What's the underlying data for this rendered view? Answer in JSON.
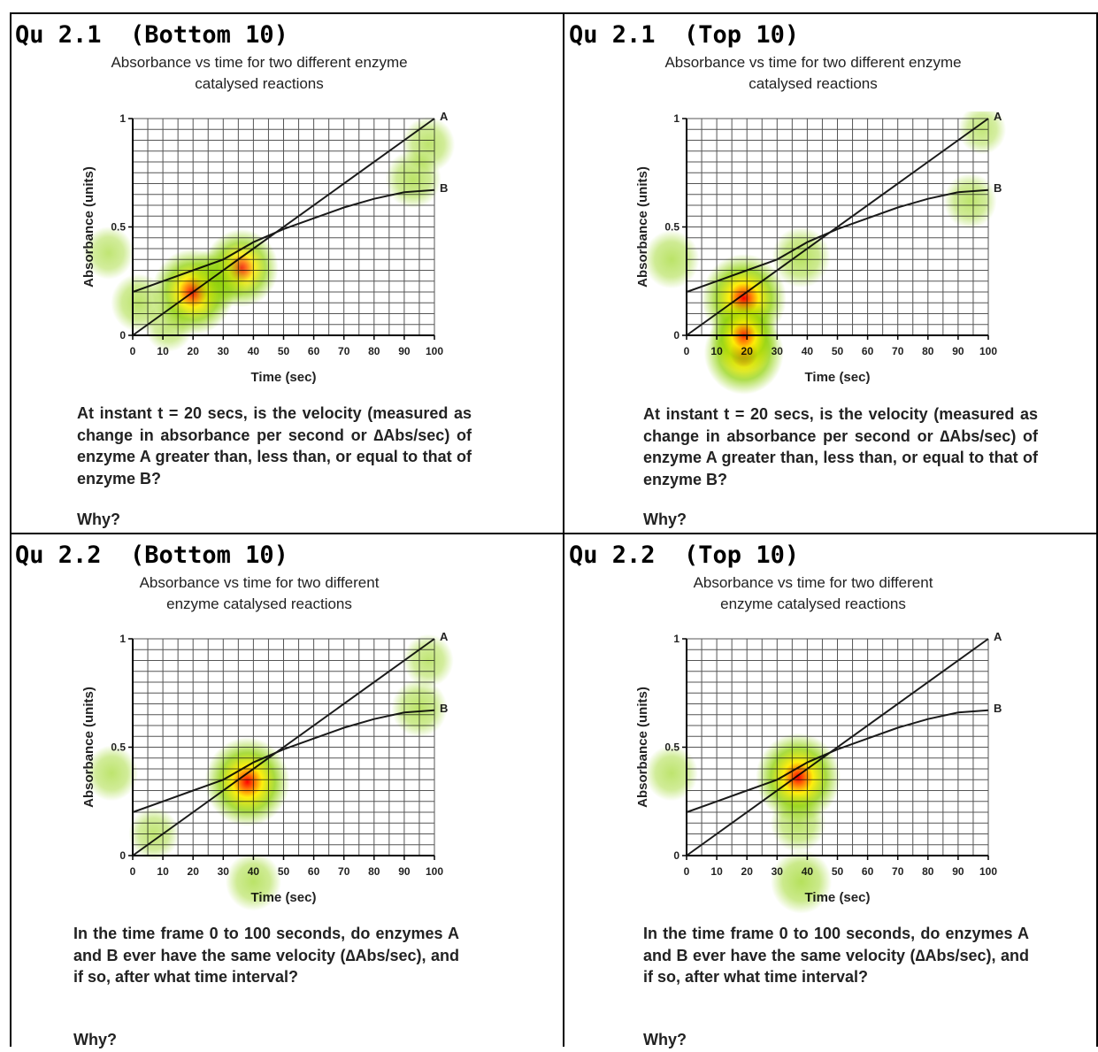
{
  "panels": [
    {
      "heading": "Qu 2.1  (Bottom 10)",
      "chart_title_line1": "Absorbance vs time for two different enzyme",
      "chart_title_line2": "catalysed reactions",
      "question": "At instant t = 20 secs, is the velocity (measured as change in absorbance per second or ∆Abs/sec) of enzyme A greater than, less than, or equal to that of enzyme B?",
      "why": "Why?",
      "heat": [
        {
          "x": 20,
          "y": 0.2,
          "intensity": 0.95
        },
        {
          "x": 36,
          "y": 0.31,
          "intensity": 0.8
        },
        {
          "x": 28,
          "y": 0.26,
          "intensity": 0.55
        },
        {
          "x": 2,
          "y": 0.15,
          "intensity": 0.45
        },
        {
          "x": -8,
          "y": 0.38,
          "intensity": 0.35
        },
        {
          "x": 12,
          "y": 0.04,
          "intensity": 0.3
        },
        {
          "x": 93,
          "y": 0.72,
          "intensity": 0.45
        },
        {
          "x": 98,
          "y": 0.88,
          "intensity": 0.4
        }
      ]
    },
    {
      "heading": "Qu 2.1  (Top 10)",
      "chart_title_line1": "Absorbance vs time for two different enzyme",
      "chart_title_line2": "catalysed reactions",
      "question": "At instant t = 20 secs, is the velocity (measured as change in absorbance per second or ∆Abs/sec) of enzyme A greater than, less than, or equal to that of enzyme B?",
      "why": "Why?",
      "heat": [
        {
          "x": 19,
          "y": 0.17,
          "intensity": 1.0
        },
        {
          "x": 19,
          "y": -0.08,
          "intensity": 0.9
        },
        {
          "x": 19,
          "y": 0.0,
          "intensity": 0.7
        },
        {
          "x": 38,
          "y": 0.36,
          "intensity": 0.5
        },
        {
          "x": -5,
          "y": 0.35,
          "intensity": 0.45
        },
        {
          "x": 94,
          "y": 0.62,
          "intensity": 0.4
        },
        {
          "x": 98,
          "y": 0.95,
          "intensity": 0.3
        }
      ]
    },
    {
      "heading": "Qu 2.2  (Bottom 10)",
      "chart_title_line1": "Absorbance vs time for two different",
      "chart_title_line2": "enzyme catalysed reactions",
      "question": "In the time frame 0 to 100 seconds, do enzymes A and B ever have the same velocity (∆Abs/sec), and if so, after what time interval?",
      "why": "Why?",
      "heat": [
        {
          "x": 38,
          "y": 0.34,
          "intensity": 1.0
        },
        {
          "x": -7,
          "y": 0.38,
          "intensity": 0.4
        },
        {
          "x": 7,
          "y": 0.1,
          "intensity": 0.35
        },
        {
          "x": 40,
          "y": -0.12,
          "intensity": 0.45
        },
        {
          "x": 95,
          "y": 0.68,
          "intensity": 0.45
        },
        {
          "x": 98,
          "y": 0.9,
          "intensity": 0.35
        }
      ]
    },
    {
      "heading": "Qu 2.2  (Top 10)",
      "chart_title_line1": "Absorbance vs time for two different",
      "chart_title_line2": "enzyme catalysed reactions",
      "question": "In the time frame 0 to 100 seconds, do enzymes A and B ever have the same velocity (∆Abs/sec), and if so, after what time interval?",
      "why": "Why?",
      "heat": [
        {
          "x": 37,
          "y": 0.36,
          "intensity": 1.0
        },
        {
          "x": 37,
          "y": 0.15,
          "intensity": 0.45
        },
        {
          "x": 38,
          "y": -0.12,
          "intensity": 0.55
        },
        {
          "x": -5,
          "y": 0.38,
          "intensity": 0.4
        }
      ]
    }
  ],
  "chart_data": [
    {
      "type": "line",
      "title": "Absorbance vs time for two different enzyme catalysed reactions",
      "xlabel": "Time (sec)",
      "ylabel": "Absorbance (units)",
      "xlim": [
        0,
        100
      ],
      "ylim": [
        0,
        1
      ],
      "xticks": [
        "0",
        "10",
        "20",
        "30",
        "40",
        "50",
        "60",
        "70",
        "80",
        "90",
        "100"
      ],
      "yticks": [
        "0",
        "0.5",
        "1"
      ],
      "grid": true,
      "series": [
        {
          "name": "A",
          "points": [
            [
              0,
              0
            ],
            [
              100,
              1
            ]
          ]
        },
        {
          "name": "B",
          "points": [
            [
              0,
              0.2
            ],
            [
              10,
              0.25
            ],
            [
              20,
              0.3
            ],
            [
              30,
              0.35
            ],
            [
              40,
              0.43
            ],
            [
              50,
              0.49
            ],
            [
              60,
              0.54
            ],
            [
              70,
              0.59
            ],
            [
              80,
              0.63
            ],
            [
              90,
              0.66
            ],
            [
              100,
              0.67
            ]
          ]
        }
      ]
    }
  ],
  "colors": {
    "line": "#1a1a1a",
    "grid": "#555555",
    "heat_low": "#8cd000",
    "heat_mid": "#ffee00",
    "heat_high": "#ff0000"
  }
}
